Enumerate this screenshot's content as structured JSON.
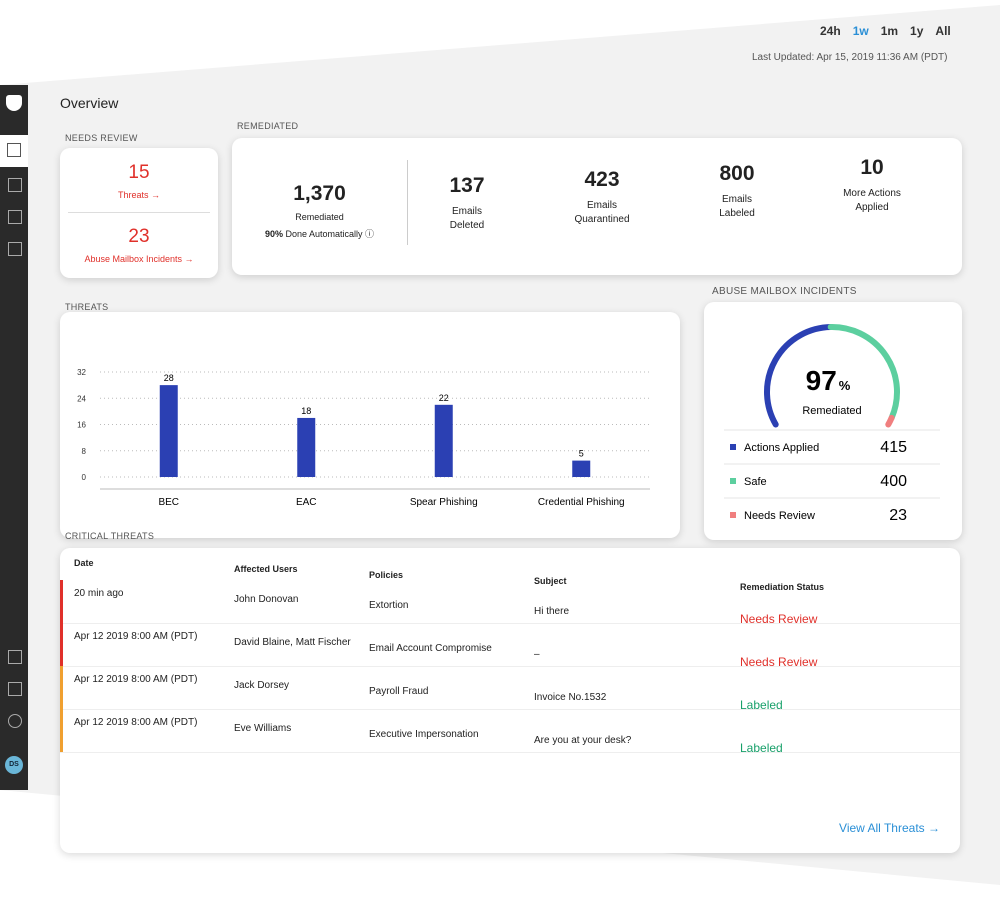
{
  "time_filters": {
    "options": [
      "24h",
      "1w",
      "1m",
      "1y",
      "All"
    ],
    "active": 1,
    "last_updated": "Last Updated: Apr 15, 2019 11:36 AM (PDT)"
  },
  "overview": {
    "title": "Overview"
  },
  "needs_review": {
    "label": "NEEDS REVIEW",
    "threats_count": "15",
    "threats_label": "Threats",
    "abuse_count": "23",
    "abuse_label": "Abuse Mailbox Incidents"
  },
  "remediated": {
    "label": "REMEDIATED",
    "total": "1,370",
    "total_label": "Remediated",
    "auto_pct": "90%",
    "auto_label": "Done Automatically",
    "stats": [
      {
        "value": "137",
        "label": [
          "Emails",
          "Deleted"
        ]
      },
      {
        "value": "423",
        "label": [
          "Emails",
          "Quarantined"
        ]
      },
      {
        "value": "800",
        "label": [
          "Emails",
          "Labeled"
        ]
      },
      {
        "value": "10",
        "label": [
          "More Actions",
          "Applied"
        ]
      }
    ]
  },
  "threats_chart": {
    "type": "bar",
    "label": "THREATS",
    "categories": [
      "BEC",
      "EAC",
      "Spear Phishing",
      "Credential Phishing"
    ],
    "values": [
      28,
      18,
      22,
      5
    ],
    "color": "#2b40b3",
    "ylim": [
      0,
      32
    ],
    "yticks": [
      0,
      8,
      16,
      24,
      32
    ],
    "grid": true
  },
  "abuse": {
    "label": "ABUSE MAILBOX INCIDENTS",
    "percent": 97,
    "percent_unit": "%",
    "percent_label": "Remediated",
    "series": [
      {
        "name": "Actions Applied",
        "value": 415,
        "color": "#2b40b3"
      },
      {
        "name": "Safe",
        "value": 400,
        "color": "#5ccf9f"
      },
      {
        "name": "Needs Review",
        "value": 23,
        "color": "#f07f7f"
      }
    ]
  },
  "critical": {
    "label": "CRITICAL THREATS",
    "columns": [
      "Date",
      "Affected Users",
      "Policies",
      "Subject",
      "Remediation Status"
    ],
    "rows": [
      {
        "cells": [
          "20 min ago",
          "John Donovan",
          "Extortion",
          "Hi there",
          "Needs Review"
        ],
        "color": "#e0302a",
        "status_color": "#e0302a"
      },
      {
        "cells": [
          "Apr 12 2019 8:00 AM (PDT)",
          "David Blaine, Matt Fischer",
          "Email Account Compromise",
          "–",
          "Needs Review"
        ],
        "color": "#e0302a",
        "status_color": "#e0302a"
      },
      {
        "cells": [
          "Apr 12 2019 8:00 AM (PDT)",
          "Jack Dorsey",
          "Payroll Fraud",
          "Invoice No.1532",
          "Labeled"
        ],
        "color": "#f0a030",
        "status_color": "#18a06a"
      },
      {
        "cells": [
          "Apr 12 2019 8:00 AM (PDT)",
          "Eve Williams",
          "Executive Impersonation",
          "Are you at your desk?",
          "Labeled"
        ],
        "color": "#f0a030",
        "status_color": "#18a06a"
      }
    ],
    "view_all": "View All Threats"
  },
  "user": {
    "initials": "DS"
  }
}
